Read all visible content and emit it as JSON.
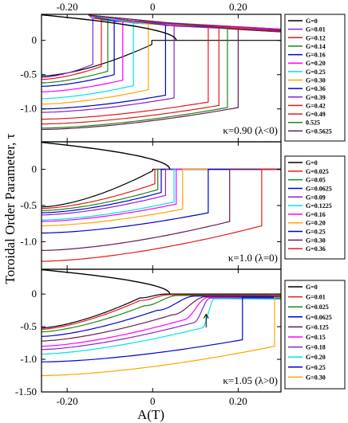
{
  "figure": {
    "ylabel": "Toroidal Order Parameter, τ",
    "xlabel": "A(T)",
    "xlim": [
      -0.26,
      0.3
    ],
    "x_ticks": [
      "-0.20",
      "0",
      "0.20"
    ],
    "x_tick_values": [
      -0.2,
      0,
      0.2
    ]
  },
  "chart_data": [
    {
      "type": "line",
      "annotation": "κ=0.90 (λ<0)",
      "ylim": [
        -1.48,
        0.38
      ],
      "y_ticks": [
        "0",
        "-0.5",
        "-1.0"
      ],
      "y_tick_values": [
        0,
        -0.5,
        -1.0
      ],
      "legend_position": "right-outside",
      "parabola": {
        "color": "#000000",
        "x_max": 0.055
      },
      "series": [
        {
          "name": "G=0",
          "color": "#000000",
          "knee": -0.002,
          "top_y": 0.0,
          "low_left": -0.52,
          "low_knee": -0.06,
          "top_left": 0.0,
          "top_right": 0.0
        },
        {
          "name": "G=0.01",
          "color": "#8b22c9",
          "knee": -0.14,
          "top_y": 0.32,
          "low_left": -0.54,
          "low_knee": -0.35,
          "top_left": 0.32,
          "top_right": 0.16
        },
        {
          "name": "G=0.12",
          "color": "#e41a1c",
          "knee": -0.12,
          "top_y": 0.3,
          "low_left": -0.57,
          "low_knee": -0.38,
          "top_left": 0.3,
          "top_right": 0.16
        },
        {
          "name": "G=0.14",
          "color": "#1a8a1a",
          "knee": -0.105,
          "top_y": 0.29,
          "low_left": -0.62,
          "low_knee": -0.45,
          "top_left": 0.29,
          "top_right": 0.15
        },
        {
          "name": "G=0.16",
          "color": "#0000d0",
          "knee": -0.09,
          "top_y": 0.28,
          "low_left": -0.67,
          "low_knee": -0.5,
          "top_left": 0.28,
          "top_right": 0.15
        },
        {
          "name": "G=0.20",
          "color": "#ff00ff",
          "knee": -0.07,
          "top_y": 0.27,
          "low_left": -0.75,
          "low_knee": -0.58,
          "top_left": 0.27,
          "top_right": 0.15
        },
        {
          "name": "G=0.25",
          "color": "#00e5e5",
          "knee": -0.045,
          "top_y": 0.25,
          "low_left": -0.85,
          "low_knee": -0.66,
          "top_left": 0.25,
          "top_right": 0.14
        },
        {
          "name": "G=0.30",
          "color": "#ffa500",
          "knee": -0.01,
          "top_y": 0.24,
          "low_left": -0.93,
          "low_knee": -0.72,
          "top_left": 0.24,
          "top_right": 0.14
        },
        {
          "name": "G=0.36",
          "color": "#0000d0",
          "knee": 0.03,
          "top_y": 0.22,
          "low_left": -1.0,
          "low_knee": -0.8,
          "top_left": 0.22,
          "top_right": 0.14
        },
        {
          "name": "G=0.39",
          "color": "#8b22c9",
          "knee": 0.05,
          "top_y": 0.21,
          "low_left": -1.05,
          "low_knee": -0.84,
          "top_left": 0.21,
          "top_right": 0.13
        },
        {
          "name": "G=0.42",
          "color": "#e41a1c",
          "knee": 0.13,
          "top_y": 0.2,
          "low_left": -1.15,
          "low_knee": -0.9,
          "top_left": 0.2,
          "top_right": 0.13
        },
        {
          "name": "G=0.49",
          "color": "#e41a1c",
          "knee": 0.155,
          "top_y": 0.18,
          "low_left": -1.22,
          "low_knee": -0.95,
          "top_left": 0.18,
          "top_right": 0.13
        },
        {
          "name": "0.525",
          "color": "#1a8a1a",
          "knee": 0.175,
          "top_y": 0.17,
          "low_left": -1.28,
          "low_knee": -0.98,
          "top_left": 0.17,
          "top_right": 0.12
        },
        {
          "name": "G=0.5625",
          "color": "#6a1b4d",
          "knee": 0.2,
          "top_y": 0.16,
          "low_left": -1.3,
          "low_knee": -0.98,
          "top_left": 0.16,
          "top_right": 0.12
        }
      ]
    },
    {
      "type": "line",
      "annotation": "κ=1.0 (λ=0)",
      "ylim": [
        -1.38,
        0.38
      ],
      "y_ticks": [
        "0",
        "-0.5",
        "-1.0"
      ],
      "y_tick_values": [
        0,
        -0.5,
        -1.0
      ],
      "legend_position": "right-outside",
      "parabola": {
        "color": "#000000",
        "x_max": 0.04
      },
      "series": [
        {
          "name": "G=0",
          "color": "#000000",
          "knee": 0.0,
          "top_y": 0.0,
          "low_left": -0.52,
          "low_knee": -0.02,
          "top_left": 0.0,
          "top_right": 0.0
        },
        {
          "name": "G=0.025",
          "color": "#e41a1c",
          "knee": 0.005,
          "top_y": 0.0,
          "low_left": -0.54,
          "low_knee": -0.2,
          "top_left": 0.0,
          "top_right": 0.0
        },
        {
          "name": "G=0.05",
          "color": "#1a8a1a",
          "knee": 0.012,
          "top_y": 0.0,
          "low_left": -0.57,
          "low_knee": -0.28,
          "top_left": 0.0,
          "top_right": 0.0
        },
        {
          "name": "G=0.0625",
          "color": "#0000d0",
          "knee": 0.02,
          "top_y": 0.0,
          "low_left": -0.6,
          "low_knee": -0.32,
          "top_left": 0.0,
          "top_right": 0.0
        },
        {
          "name": "G=0.09",
          "color": "#8b22c9",
          "knee": 0.03,
          "top_y": 0.0,
          "low_left": -0.63,
          "low_knee": -0.36,
          "top_left": 0.0,
          "top_right": 0.0
        },
        {
          "name": "G=0.1225",
          "color": "#00e5e5",
          "knee": 0.05,
          "top_y": 0.0,
          "low_left": -0.7,
          "low_knee": -0.45,
          "top_left": 0.0,
          "top_right": 0.0
        },
        {
          "name": "G=0.16",
          "color": "#ff00ff",
          "knee": 0.055,
          "top_y": 0.0,
          "low_left": -0.72,
          "low_knee": -0.48,
          "top_left": 0.0,
          "top_right": 0.0
        },
        {
          "name": "G=0.20",
          "color": "#ffa500",
          "knee": 0.07,
          "top_y": 0.0,
          "low_left": -0.78,
          "low_knee": -0.55,
          "top_left": 0.0,
          "top_right": 0.0
        },
        {
          "name": "G=0.25",
          "color": "#0000d0",
          "knee": 0.13,
          "top_y": 0.0,
          "low_left": -0.88,
          "low_knee": -0.6,
          "top_left": 0.0,
          "top_right": 0.0
        },
        {
          "name": "G=0.30",
          "color": "#6a1b4d",
          "knee": 0.18,
          "top_y": 0.0,
          "low_left": -1.12,
          "low_knee": -0.72,
          "top_left": 0.0,
          "top_right": 0.0
        },
        {
          "name": "G=0.36",
          "color": "#e41a1c",
          "knee": 0.255,
          "top_y": 0.0,
          "low_left": -1.27,
          "low_knee": -0.78,
          "top_left": 0.0,
          "top_right": 0.0
        }
      ]
    },
    {
      "type": "line",
      "annotation": "κ=1.05 (λ>0)",
      "ylim": [
        -1.5,
        0.38
      ],
      "y_ticks": [
        "0",
        "-0.5",
        "-1.0",
        "-1.50"
      ],
      "y_tick_values": [
        0,
        -0.5,
        -1.0,
        -1.5
      ],
      "legend_position": "right-outside",
      "parabola": {
        "color": "#000000",
        "x_max": 0.04
      },
      "arrow": {
        "x": 0.125,
        "y_from": -0.51,
        "y_to": -0.31
      },
      "series": [
        {
          "name": "G=0",
          "color": "#000000",
          "mode": "smooth",
          "knee": 0.0,
          "rise_width": 0.03,
          "top_y": 0.0,
          "low_left": -0.52,
          "low_knee": -0.06,
          "top_left": 0.0,
          "top_right": 0.0
        },
        {
          "name": "G=0.01",
          "color": "#e41a1c",
          "mode": "smooth",
          "knee": 0.005,
          "rise_width": 0.035,
          "top_y": -0.01,
          "low_left": -0.54,
          "low_knee": -0.1,
          "top_left": -0.01,
          "top_right": -0.02
        },
        {
          "name": "G=0.025",
          "color": "#1a8a1a",
          "mode": "smooth",
          "knee": 0.02,
          "rise_width": 0.04,
          "top_y": -0.02,
          "low_left": -0.58,
          "low_knee": -0.18,
          "top_left": -0.02,
          "top_right": -0.03
        },
        {
          "name": "G=0.0625",
          "color": "#0000d0",
          "mode": "smooth",
          "knee": 0.055,
          "rise_width": 0.045,
          "top_y": -0.03,
          "low_left": -0.65,
          "low_knee": -0.25,
          "top_left": -0.03,
          "top_right": -0.04
        },
        {
          "name": "G=0.125",
          "color": "#6a1b4d",
          "mode": "smooth",
          "knee": 0.085,
          "rise_width": 0.04,
          "top_y": -0.04,
          "low_left": -0.72,
          "low_knee": -0.32,
          "top_left": -0.04,
          "top_right": -0.05
        },
        {
          "name": "G=0.15",
          "color": "#ff00ff",
          "mode": "smooth",
          "knee": 0.1,
          "rise_width": 0.03,
          "top_y": -0.05,
          "low_left": -0.8,
          "low_knee": -0.4,
          "top_left": -0.05,
          "top_right": -0.06
        },
        {
          "name": "G=0.18",
          "color": "#8b22c9",
          "mode": "smooth",
          "knee": 0.115,
          "rise_width": 0.02,
          "top_y": -0.06,
          "low_left": -0.85,
          "low_knee": -0.44,
          "top_left": -0.06,
          "top_right": -0.07
        },
        {
          "name": "G=0.20",
          "color": "#00e5e5",
          "mode": "smooth",
          "knee": 0.13,
          "rise_width": 0.015,
          "top_y": -0.07,
          "low_left": -0.92,
          "low_knee": -0.52,
          "top_left": -0.07,
          "top_right": -0.08
        },
        {
          "name": "G=0.25",
          "color": "#0000d0",
          "knee": 0.21,
          "top_y": -0.05,
          "low_left": -1.04,
          "low_knee": -0.7,
          "top_left": -0.05,
          "top_right": -0.05
        },
        {
          "name": "G=0.30",
          "color": "#ffa500",
          "knee": 0.285,
          "top_y": -0.05,
          "low_left": -1.25,
          "low_knee": -0.8,
          "top_left": -0.05,
          "top_right": -0.05
        }
      ]
    }
  ]
}
